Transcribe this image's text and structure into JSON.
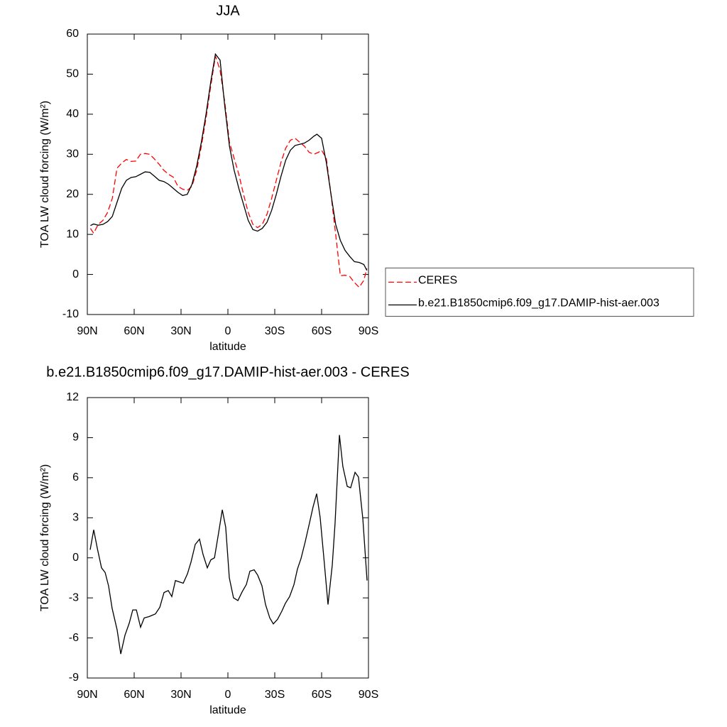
{
  "chart_data": [
    {
      "type": "line",
      "title": "JJA",
      "xlabel": "latitude",
      "ylabel": "TOA LW cloud forcing (W/m²)",
      "xlim": [
        90,
        -90
      ],
      "ylim": [
        -10,
        60
      ],
      "xticks": [
        {
          "value": 90,
          "label": "90N"
        },
        {
          "value": 60,
          "label": "60N"
        },
        {
          "value": 30,
          "label": "30N"
        },
        0,
        {
          "value": -30,
          "label": "30S"
        },
        {
          "value": -60,
          "label": "60S"
        },
        {
          "value": -90,
          "label": "90S"
        }
      ],
      "yticks": [
        -10,
        0,
        10,
        20,
        30,
        40,
        50,
        60
      ],
      "legend": "right",
      "series": [
        {
          "name": "CERES",
          "color": "#ff0000",
          "line_style": "dashed",
          "x": [
            88,
            86,
            83,
            80,
            77,
            74,
            71,
            68,
            65,
            62,
            59,
            56,
            53,
            50,
            47,
            44,
            41,
            38,
            35,
            32,
            29,
            26,
            23,
            20,
            17,
            14,
            11,
            8,
            5,
            2,
            -1,
            -4,
            -7,
            -10,
            -13,
            -16,
            -19,
            -22,
            -25,
            -28,
            -31,
            -34,
            -37,
            -40,
            -43,
            -46,
            -49,
            -52,
            -55,
            -58,
            -60,
            -63,
            -66,
            -69,
            -72,
            -75,
            -78,
            -81,
            -84,
            -87,
            -89
          ],
          "values": [
            11.5,
            10.3,
            12.5,
            13.5,
            15.5,
            19,
            26.5,
            27.8,
            28.7,
            28.2,
            28.3,
            30,
            30.2,
            30,
            28.8,
            27.5,
            26,
            25,
            24.3,
            22,
            21.3,
            21,
            22,
            26,
            32,
            39,
            47,
            54.5,
            51,
            43,
            33,
            29,
            25,
            20,
            15.5,
            12.5,
            11.7,
            12.5,
            15,
            19,
            23.5,
            28,
            31.5,
            33.5,
            34,
            33,
            32,
            30.5,
            30,
            30.5,
            31,
            29,
            20,
            10,
            -0.3,
            -0.2,
            -0.5,
            -2,
            -3.2,
            -1.5,
            1.5
          ]
        },
        {
          "name": "b.e21.B1850cmip6.f09_g17.DAMIP-hist-aer.003",
          "color": "#000000",
          "line_style": "solid",
          "x": [
            88,
            86,
            83,
            80,
            77,
            74,
            71,
            68,
            65,
            62,
            59,
            56,
            53,
            50,
            47,
            44,
            41,
            38,
            35,
            32,
            29,
            26,
            23,
            20,
            17,
            14,
            11,
            8,
            5,
            2,
            -1,
            -4,
            -7,
            -10,
            -13,
            -16,
            -19,
            -22,
            -25,
            -28,
            -31,
            -34,
            -37,
            -40,
            -43,
            -46,
            -49,
            -52,
            -55,
            -57,
            -60,
            -63,
            -66,
            -69,
            -72,
            -75,
            -78,
            -81,
            -84,
            -87,
            -89
          ],
          "values": [
            12.2,
            12.6,
            12.3,
            12.5,
            13.2,
            14.5,
            18,
            21.5,
            23.5,
            24.2,
            24.4,
            25,
            25.6,
            25.5,
            24.5,
            23.5,
            23.2,
            22.5,
            21.5,
            20.5,
            19.7,
            20,
            22.5,
            27,
            33,
            40,
            48,
            55,
            53.5,
            42,
            32,
            26,
            21.5,
            17.5,
            13.5,
            11.2,
            10.8,
            11.5,
            13,
            16,
            20,
            24.5,
            28.5,
            31,
            32.2,
            32.5,
            32.8,
            33.5,
            34.5,
            35,
            34,
            28,
            20,
            12.5,
            8.5,
            6,
            4.5,
            3.2,
            3,
            2.5,
            1
          ]
        }
      ]
    },
    {
      "type": "line",
      "title": "b.e21.B1850cmip6.f09_g17.DAMIP-hist-aer.003 - CERES",
      "xlabel": "latitude",
      "ylabel": "TOA LW cloud forcing (W/m²)",
      "xlim": [
        90,
        -90
      ],
      "ylim": [
        -9,
        12
      ],
      "xticks": [
        {
          "value": 90,
          "label": "90N"
        },
        {
          "value": 60,
          "label": "60N"
        },
        {
          "value": 30,
          "label": "30N"
        },
        0,
        {
          "value": -30,
          "label": "30S"
        },
        {
          "value": -60,
          "label": "60S"
        },
        {
          "value": -90,
          "label": "90S"
        }
      ],
      "yticks": [
        -9,
        -6,
        -3,
        0,
        3,
        6,
        9,
        12
      ],
      "series": [
        {
          "color": "#000000",
          "line_style": "solid",
          "x": [
            88.2,
            85.9,
            83.6,
            80.9,
            78.6,
            76.4,
            74.1,
            70.9,
            68.6,
            65.9,
            63.2,
            60.9,
            58.6,
            55.9,
            53.6,
            50.5,
            46.4,
            43.6,
            40.9,
            38.2,
            35.9,
            33.6,
            28.6,
            25.9,
            23.6,
            20.9,
            18.2,
            15.9,
            13.2,
            10.9,
            8.6,
            5.9,
            3.6,
            1.4,
            -0.9,
            -3.6,
            -6.4,
            -9.1,
            -11.8,
            -14.1,
            -16.8,
            -19.1,
            -21.8,
            -24.1,
            -26.8,
            -29.1,
            -31.8,
            -34.5,
            -36.8,
            -39.5,
            -42.3,
            -44.5,
            -46.8,
            -49.5,
            -52.3,
            -54.5,
            -56.8,
            -59.1,
            -61.8,
            -64.1,
            -66.8,
            -68.6,
            -71.4,
            -73.6,
            -76.4,
            -78.6,
            -81.4,
            -83.6,
            -86.4,
            -89.1
          ],
          "values": [
            0.6,
            2.1,
            0.7,
            -0.75,
            -1.1,
            -2.1,
            -3.8,
            -5.4,
            -7.2,
            -5.8,
            -4.9,
            -3.9,
            -3.9,
            -5.2,
            -4.5,
            -4.4,
            -4.2,
            -3.7,
            -2.6,
            -2.45,
            -2.9,
            -1.7,
            -1.9,
            -1.2,
            -0.3,
            1,
            1.4,
            0.25,
            -0.75,
            -0.15,
            0,
            1.9,
            3.6,
            2.3,
            -1.5,
            -3,
            -3.2,
            -2.55,
            -2,
            -1,
            -0.9,
            -1.3,
            -2.1,
            -3.5,
            -4.5,
            -4.95,
            -4.6,
            -4,
            -3.4,
            -2.9,
            -2,
            -0.85,
            -0.05,
            1.2,
            2.65,
            3.8,
            4.8,
            3,
            -0.5,
            -3.5,
            -0.55,
            2.55,
            9.2,
            6.85,
            5.35,
            5.25,
            6.4,
            6.05,
            2.9,
            -1.7
          ]
        }
      ]
    }
  ]
}
